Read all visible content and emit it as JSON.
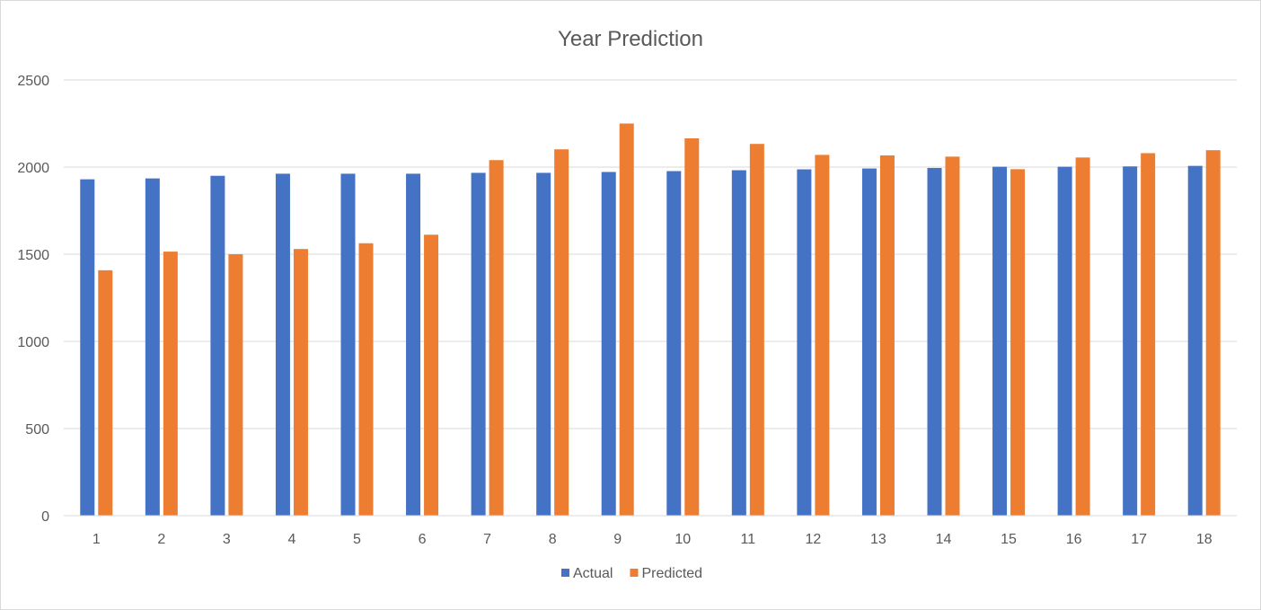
{
  "chart_data": {
    "type": "bar",
    "title": "Year Prediction",
    "xlabel": "",
    "ylabel": "",
    "categories": [
      "1",
      "2",
      "3",
      "4",
      "5",
      "6",
      "7",
      "8",
      "9",
      "10",
      "11",
      "12",
      "13",
      "14",
      "15",
      "16",
      "17",
      "18"
    ],
    "series": [
      {
        "name": "Actual",
        "color": "#4472C4",
        "values": [
          1930,
          1935,
          1950,
          1962,
          1962,
          1962,
          1967,
          1967,
          1972,
          1977,
          1982,
          1987,
          1992,
          1995,
          2002,
          2002,
          2004,
          2007
        ]
      },
      {
        "name": "Predicted",
        "color": "#ED7D31",
        "values": [
          1408,
          1515,
          1500,
          1530,
          1563,
          1612,
          2040,
          2102,
          2250,
          2165,
          2133,
          2070,
          2067,
          2060,
          1988,
          2055,
          2080,
          2097
        ]
      }
    ],
    "ylim": [
      0,
      2500
    ],
    "yticks": [
      0,
      500,
      1000,
      1500,
      2000,
      2500
    ],
    "grid": true,
    "legend_position": "bottom"
  }
}
